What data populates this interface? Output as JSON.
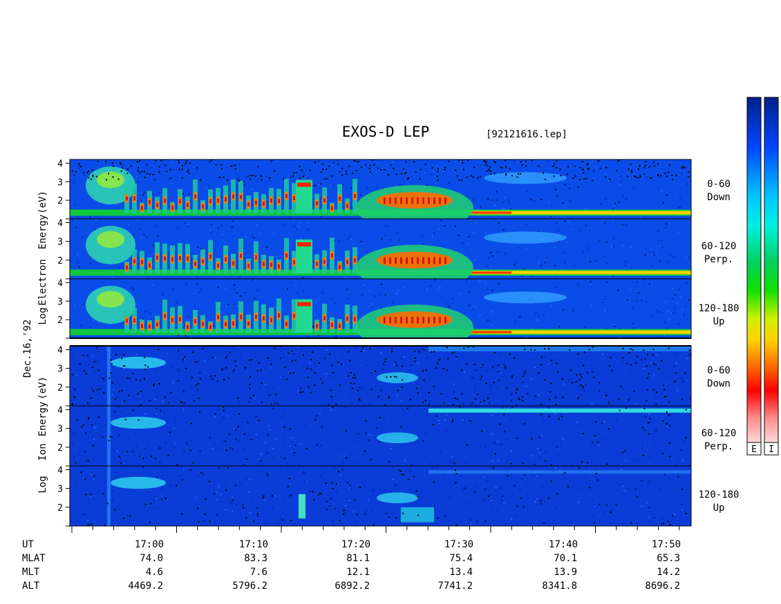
{
  "header": {
    "title": "EXOS-D LEP",
    "file": "[92121616.lep]"
  },
  "chart_data": {
    "type": "heatmap",
    "date_label": "Dec.16,'92",
    "electron_ylabel": [
      "Log",
      "Electron",
      "Energy",
      "(eV)"
    ],
    "ion_ylabel": [
      "Log",
      "Ion",
      "Energy",
      "(eV)"
    ],
    "y_ticks": [
      "1",
      "2",
      "3",
      "4"
    ],
    "ylim": [
      1,
      4.2
    ],
    "x_ticks": [
      "17:00",
      "17:10",
      "17:20",
      "17:30",
      "17:40",
      "17:50"
    ],
    "colorbar_labels": [
      "E",
      "I"
    ],
    "panels": [
      {
        "group": "electron",
        "pitch": "0-60",
        "dir": "Down"
      },
      {
        "group": "electron",
        "pitch": "60-120",
        "dir": "Perp."
      },
      {
        "group": "electron",
        "pitch": "120-180",
        "dir": "Up"
      },
      {
        "group": "ion",
        "pitch": "0-60",
        "dir": "Down"
      },
      {
        "group": "ion",
        "pitch": "60-120",
        "dir": "Perp."
      },
      {
        "group": "ion",
        "pitch": "120-180",
        "dir": "Up"
      }
    ],
    "ephemeris": [
      {
        "name": "UT",
        "values": []
      },
      {
        "name": "MLAT",
        "values": [
          "74.0",
          "83.3",
          "81.1",
          "75.4",
          "70.1",
          "65.3"
        ]
      },
      {
        "name": "MLT",
        "values": [
          "4.6",
          "7.6",
          "12.1",
          "13.4",
          "13.9",
          "14.2"
        ]
      },
      {
        "name": "ALT",
        "values": [
          "4469.2",
          "5796.2",
          "6892.2",
          "7741.2",
          "8341.8",
          "8696.2"
        ]
      }
    ]
  }
}
